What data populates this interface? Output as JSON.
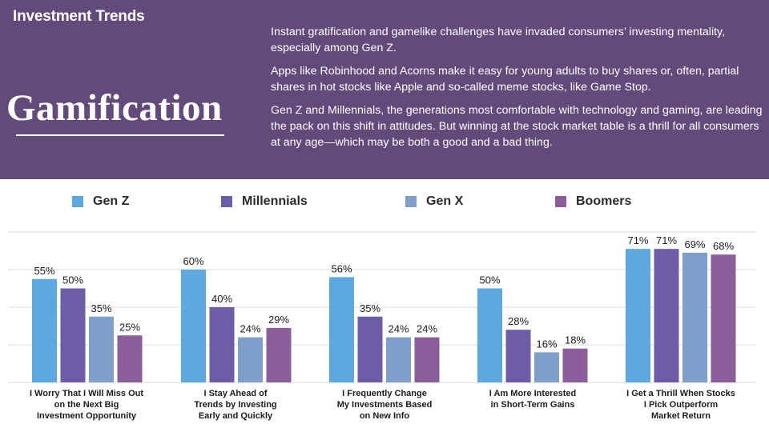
{
  "header": {
    "label": "Investment Trends",
    "title": "Gamification",
    "paragraphs": [
      "Instant gratification and gamelike challenges have invaded consumers’ investing mentality, especially among Gen Z.",
      "Apps like Robinhood and Acorns make it easy for young adults to buy shares or, often, partial shares in hot stocks like Apple and so-called meme stocks, like Game Stop.",
      "Gen Z and Millennials, the generations most comfortable with technology and gaming, are leading the pack on this shift in attitudes. But winning at the stock market table is a thrill for all consumers at any age—which may be both a good and a bad thing."
    ]
  },
  "colors": {
    "banner": "#624a7a",
    "gen_z": "#5ea8e2",
    "millennials": "#6d5da9",
    "gen_x": "#7f9fcb",
    "boomers": "#8b5e99"
  },
  "chart_data": {
    "type": "bar",
    "categories": [
      "I Worry That I Will Miss Out on the Next Big Investment Opportunity",
      "I Stay Ahead of Trends by Investing Early and Quickly",
      "I Frequently Change My Investments Based on New Info",
      "I Am More Interested in Short-Term Gains",
      "I Get a Thrill When Stocks I Pick Outperform Market Return"
    ],
    "category_lines": [
      [
        "I Worry That I Will Miss Out",
        "on the Next Big",
        "Investment Opportunity"
      ],
      [
        "I Stay Ahead of",
        "Trends by Investing",
        "Early and Quickly"
      ],
      [
        "I Frequently Change",
        "My Investments Based",
        "on New Info"
      ],
      [
        "I Am More Interested",
        "in Short-Term Gains"
      ],
      [
        "I Get a Thrill When Stocks",
        "I Pick Outperform",
        "Market Return"
      ]
    ],
    "series": [
      {
        "name": "Gen Z",
        "color": "#5ea8e2",
        "values": [
          55,
          60,
          56,
          50,
          71
        ],
        "labels": [
          "55%",
          "60%",
          "56%",
          "50%",
          "71%"
        ]
      },
      {
        "name": "Millennials",
        "color": "#6d5da9",
        "values": [
          50,
          40,
          35,
          28,
          71
        ],
        "labels": [
          "50%",
          "40%",
          "35%",
          "28%",
          "71%"
        ]
      },
      {
        "name": "Gen X",
        "color": "#7f9fcb",
        "values": [
          35,
          24,
          24,
          16,
          69
        ],
        "labels": [
          "35%",
          "24%",
          "24%",
          "16%",
          "69%"
        ]
      },
      {
        "name": "Boomers",
        "color": "#8b5e99",
        "values": [
          25,
          29,
          24,
          18,
          68
        ],
        "labels": [
          "25%",
          "29%",
          "24%",
          "18%",
          "68%"
        ]
      }
    ],
    "ylim": [
      0,
      80
    ],
    "gridlines": [
      0,
      20,
      40,
      60,
      80
    ],
    "legend_position": "top",
    "title": "",
    "xlabel": "",
    "ylabel": ""
  }
}
